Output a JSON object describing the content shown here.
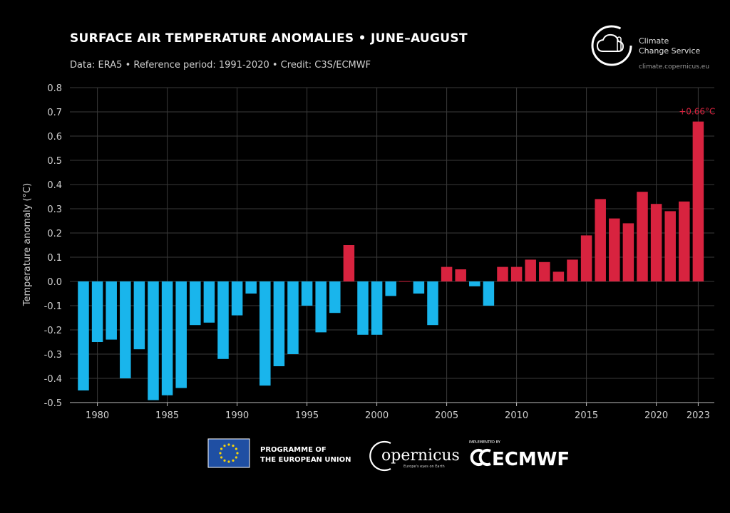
{
  "chart_data": {
    "type": "bar",
    "title": "SURFACE AIR TEMPERATURE ANOMALIES • JUNE–AUGUST",
    "subtitle": "Data: ERA5 • Reference period: 1991-2020 • Credit: C3S/ECMWF",
    "xlabel": "",
    "ylabel": "Temperature anomaly (°C)",
    "ylim": [
      -0.5,
      0.8
    ],
    "yticks": [
      0.8,
      0.7,
      0.6,
      0.5,
      0.4,
      0.3,
      0.2,
      0.1,
      0.0,
      -0.1,
      -0.2,
      -0.3,
      -0.4,
      -0.5
    ],
    "ytick_labels": [
      "0.8",
      "0.7",
      "0.6",
      "0.5",
      "0.4",
      "0.3",
      "0.2",
      "0.1",
      "0.0",
      "-0.1",
      "-0.2",
      "-0.3",
      "-0.4",
      "-0.5"
    ],
    "xticks": [
      1980,
      1985,
      1990,
      1995,
      2000,
      2005,
      2010,
      2015,
      2020,
      2023
    ],
    "xtick_labels": [
      "1980",
      "1985",
      "1990",
      "1995",
      "2000",
      "2005",
      "2010",
      "2015",
      "2020",
      "2023"
    ],
    "grid": true,
    "positive_color": "#d8233f",
    "negative_color": "#19b5ec",
    "years": [
      1979,
      1980,
      1981,
      1982,
      1983,
      1984,
      1985,
      1986,
      1987,
      1988,
      1989,
      1990,
      1991,
      1992,
      1993,
      1994,
      1995,
      1996,
      1997,
      1998,
      1999,
      2000,
      2001,
      2002,
      2003,
      2004,
      2005,
      2006,
      2007,
      2008,
      2009,
      2010,
      2011,
      2012,
      2013,
      2014,
      2015,
      2016,
      2017,
      2018,
      2019,
      2020,
      2021,
      2022,
      2023
    ],
    "values": [
      -0.45,
      -0.25,
      -0.24,
      -0.4,
      -0.28,
      -0.49,
      -0.47,
      -0.44,
      -0.18,
      -0.17,
      -0.32,
      -0.14,
      -0.05,
      -0.43,
      -0.35,
      -0.3,
      -0.1,
      -0.21,
      -0.13,
      0.15,
      -0.22,
      -0.22,
      -0.06,
      0.0,
      -0.05,
      -0.18,
      0.06,
      0.05,
      -0.02,
      -0.1,
      0.06,
      0.06,
      0.09,
      0.08,
      0.04,
      0.09,
      0.19,
      0.34,
      0.26,
      0.24,
      0.37,
      0.32,
      0.29,
      0.33,
      0.66
    ],
    "annotation": "+0.66°C"
  },
  "branding": {
    "c3s_line1": "Climate",
    "c3s_line2": "Change Service",
    "c3s_url": "climate.copernicus.eu",
    "eu_line1": "PROGRAMME OF",
    "eu_line2": "THE EUROPEAN UNION",
    "copernicus_name": "opernicus",
    "copernicus_tagline": "Europe's eyes on Earth",
    "ecmwf_tag": "IMPLEMENTED BY",
    "ecmwf_name": "ECMWF",
    "eu_flag_color": "#1f4fa3",
    "eu_star_color": "#f5d20a"
  }
}
